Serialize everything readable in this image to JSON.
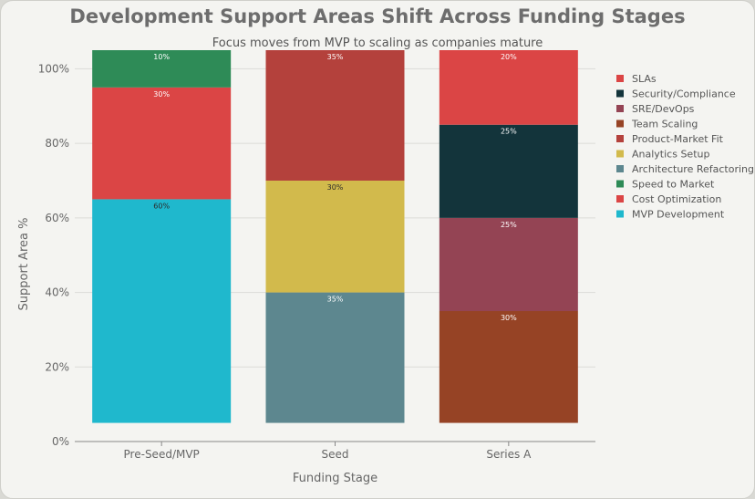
{
  "chart_data": {
    "type": "bar",
    "stacked": true,
    "title": "Development Support Areas Shift Across Funding Stages",
    "subtitle": "Focus moves from MVP to scaling as companies mature",
    "xlabel": "Funding Stage",
    "ylabel": "Support Area %",
    "ylim": [
      0,
      105
    ],
    "yticks": [
      0,
      20,
      40,
      60,
      80,
      100
    ],
    "ytick_labels": [
      "0%",
      "20%",
      "40%",
      "60%",
      "80%",
      "100%"
    ],
    "grid": true,
    "legend_position": "right",
    "categories": [
      "Pre-Seed/MVP",
      "Seed",
      "Series A"
    ],
    "series": [
      {
        "name": "MVP Development",
        "color": "#1fb8cd",
        "values": [
          60,
          0,
          0
        ]
      },
      {
        "name": "Cost Optimization",
        "color": "#db4545",
        "values": [
          30,
          0,
          0
        ]
      },
      {
        "name": "Speed to Market",
        "color": "#2e8b57",
        "values": [
          10,
          0,
          0
        ]
      },
      {
        "name": "Architecture Refactoring",
        "color": "#5d878f",
        "values": [
          0,
          35,
          0
        ]
      },
      {
        "name": "Analytics Setup",
        "color": "#d2ba4c",
        "values": [
          0,
          30,
          0
        ]
      },
      {
        "name": "Product-Market Fit",
        "color": "#b4413c",
        "values": [
          0,
          35,
          0
        ]
      },
      {
        "name": "Team Scaling",
        "color": "#964325",
        "values": [
          0,
          0,
          30
        ]
      },
      {
        "name": "SRE/DevOps",
        "color": "#944454",
        "values": [
          0,
          0,
          25
        ]
      },
      {
        "name": "Security/Compliance",
        "color": "#13343b",
        "values": [
          0,
          0,
          25
        ]
      },
      {
        "name": "SLAs",
        "color": "#db4545",
        "values": [
          0,
          0,
          20
        ]
      }
    ],
    "segment_labels": [
      [
        "60%",
        "30%",
        "10%",
        "",
        "",
        "",
        "",
        "",
        "",
        ""
      ],
      [
        "",
        "",
        "",
        "35%",
        "30%",
        "35%",
        "",
        "",
        "",
        ""
      ],
      [
        "",
        "",
        "",
        "",
        "",
        "",
        "30%",
        "25%",
        "25%",
        "20%"
      ]
    ]
  }
}
